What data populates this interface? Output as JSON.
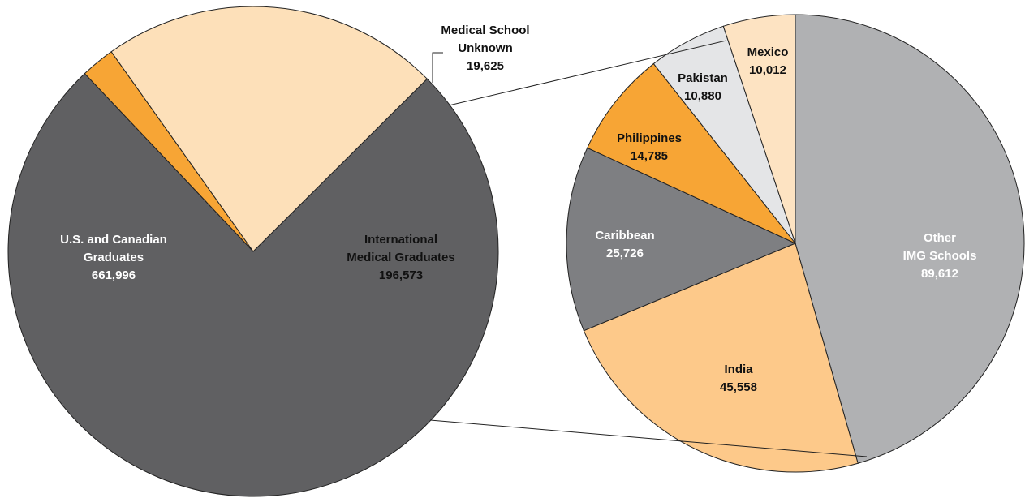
{
  "chart_data": [
    {
      "type": "pie",
      "categories": [
        "U.S. and Canadian\nGraduates",
        "Medical School\nUnknown",
        "International\nMedical Graduates"
      ],
      "values": [
        661996,
        19625,
        196573
      ],
      "value_labels": [
        "661,996",
        "19,625",
        "196,573"
      ],
      "colors": [
        "#606062",
        "#f7a535",
        "#fde0b9"
      ]
    },
    {
      "type": "pie",
      "categories": [
        "Other\nIMG Schools",
        "India",
        "Caribbean",
        "Philippines",
        "Pakistan",
        "Mexico"
      ],
      "values": [
        89612,
        45558,
        25726,
        14785,
        10880,
        10012
      ],
      "value_labels": [
        "89,612",
        "45,558",
        "25,726",
        "14,785",
        "10,880",
        "10,012"
      ],
      "colors": [
        "#b0b1b3",
        "#fdc98a",
        "#7e7f82",
        "#f7a535",
        "#e4e5e7",
        "#fde3c2"
      ]
    }
  ]
}
